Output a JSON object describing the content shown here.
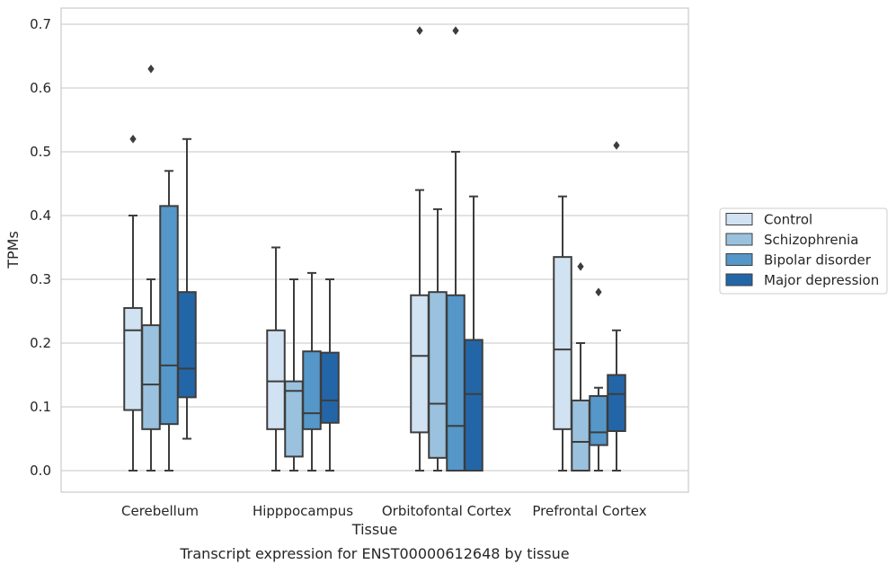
{
  "chart_data": {
    "type": "box",
    "caption": "Transcript expression for ENST00000612648 by tissue",
    "xlabel": "Tissue",
    "ylabel": "TPMs",
    "ylim": [
      -0.033,
      0.726
    ],
    "yticks": [
      0.0,
      0.1,
      0.2,
      0.3,
      0.4,
      0.5,
      0.6,
      0.7
    ],
    "ytick_labels": [
      "0.0",
      "0.1",
      "0.2",
      "0.3",
      "0.4",
      "0.5",
      "0.6",
      "0.7"
    ],
    "grid": "horizontal",
    "legend_position": "right",
    "categories": [
      "Cerebellum",
      "Hipppocampus",
      "Orbitofontal Cortex",
      "Prefrontal Cortex"
    ],
    "series": [
      {
        "name": "Control",
        "color": "#d1e2f2",
        "boxes": [
          {
            "whisker_low": 0.0,
            "q1": 0.095,
            "median": 0.22,
            "q3": 0.255,
            "whisker_high": 0.4,
            "outliers": [
              0.52
            ]
          },
          {
            "whisker_low": 0.0,
            "q1": 0.065,
            "median": 0.14,
            "q3": 0.22,
            "whisker_high": 0.35,
            "outliers": []
          },
          {
            "whisker_low": 0.0,
            "q1": 0.06,
            "median": 0.18,
            "q3": 0.275,
            "whisker_high": 0.44,
            "outliers": [
              0.69
            ]
          },
          {
            "whisker_low": 0.0,
            "q1": 0.065,
            "median": 0.19,
            "q3": 0.335,
            "whisker_high": 0.43,
            "outliers": []
          }
        ]
      },
      {
        "name": "Schizophrenia",
        "color": "#9ac2de",
        "boxes": [
          {
            "whisker_low": 0.0,
            "q1": 0.065,
            "median": 0.135,
            "q3": 0.228,
            "whisker_high": 0.3,
            "outliers": [
              0.63
            ]
          },
          {
            "whisker_low": 0.0,
            "q1": 0.022,
            "median": 0.125,
            "q3": 0.14,
            "whisker_high": 0.3,
            "outliers": []
          },
          {
            "whisker_low": 0.0,
            "q1": 0.02,
            "median": 0.105,
            "q3": 0.28,
            "whisker_high": 0.41,
            "outliers": []
          },
          {
            "whisker_low": 0.0,
            "q1": 0.0,
            "median": 0.045,
            "q3": 0.11,
            "whisker_high": 0.2,
            "outliers": [
              0.32
            ]
          }
        ]
      },
      {
        "name": "Bipolar disorder",
        "color": "#5597c8",
        "boxes": [
          {
            "whisker_low": 0.0,
            "q1": 0.073,
            "median": 0.165,
            "q3": 0.415,
            "whisker_high": 0.47,
            "outliers": []
          },
          {
            "whisker_low": 0.0,
            "q1": 0.065,
            "median": 0.09,
            "q3": 0.187,
            "whisker_high": 0.31,
            "outliers": []
          },
          {
            "whisker_low": 0.0,
            "q1": 0.0,
            "median": 0.07,
            "q3": 0.275,
            "whisker_high": 0.5,
            "outliers": [
              0.69
            ]
          },
          {
            "whisker_low": 0.0,
            "q1": 0.04,
            "median": 0.06,
            "q3": 0.117,
            "whisker_high": 0.13,
            "outliers": [
              0.28
            ]
          }
        ]
      },
      {
        "name": "Major depression",
        "color": "#2366a8",
        "boxes": [
          {
            "whisker_low": 0.05,
            "q1": 0.115,
            "median": 0.16,
            "q3": 0.28,
            "whisker_high": 0.52,
            "outliers": []
          },
          {
            "whisker_low": 0.0,
            "q1": 0.075,
            "median": 0.11,
            "q3": 0.185,
            "whisker_high": 0.3,
            "outliers": []
          },
          {
            "whisker_low": 0.0,
            "q1": 0.0,
            "median": 0.12,
            "q3": 0.205,
            "whisker_high": 0.43,
            "outliers": []
          },
          {
            "whisker_low": 0.0,
            "q1": 0.062,
            "median": 0.12,
            "q3": 0.15,
            "whisker_high": 0.22,
            "outliers": [
              0.51
            ]
          }
        ]
      }
    ]
  }
}
